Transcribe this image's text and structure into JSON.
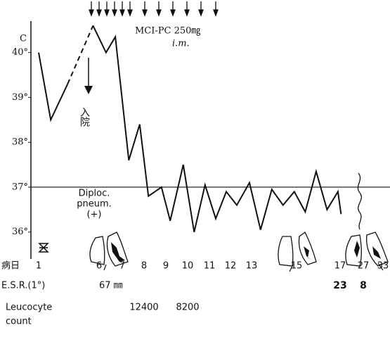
{
  "chart_data": {
    "type": "line",
    "y_unit": "C",
    "ylim": [
      35.4,
      40.7
    ],
    "yticks": [
      {
        "value": 40,
        "label": "40°"
      },
      {
        "value": 39,
        "label": "39°"
      },
      {
        "value": 38,
        "label": "38°"
      },
      {
        "value": 37,
        "label": "37°"
      },
      {
        "value": 36,
        "label": "36°"
      }
    ],
    "reference_line": 37,
    "x_label": "病日",
    "xticks": [
      1,
      6,
      7,
      8,
      9,
      10,
      11,
      12,
      13,
      15,
      17,
      27,
      33
    ],
    "color": "#111111",
    "series": [
      {
        "x": [
          1,
          2,
          3.4
        ],
        "values": [
          40.0,
          38.5,
          39.3
        ],
        "dashed": false
      },
      {
        "x": [
          3.4,
          5.5
        ],
        "values": [
          39.3,
          40.6
        ],
        "dashed": true
      },
      {
        "x": [
          5.5,
          6.3,
          6.7,
          7.3,
          7.8,
          8.2,
          8.8,
          9.2,
          9.8,
          10.3,
          10.8,
          11.3,
          11.8,
          12.3,
          12.9,
          13.4,
          13.9,
          14.4,
          14.9,
          15.4,
          15.9,
          16.4,
          16.9,
          17.4
        ],
        "values": [
          40.6,
          40.0,
          40.35,
          37.6,
          38.4,
          36.8,
          37.0,
          36.25,
          37.5,
          36.0,
          37.05,
          36.3,
          36.9,
          36.6,
          37.1,
          36.05,
          36.95,
          36.6,
          36.9,
          36.45,
          37.35,
          36.5,
          36.9,
          36.4
        ],
        "dashed": false
      }
    ],
    "annotations": {
      "drug": "MCI-PC 250㎎",
      "route": "i.m.",
      "admission": "入院",
      "diploc_1": "Diploc.",
      "diploc_2": "pneum.",
      "diploc_3": "(+)"
    },
    "esr": {
      "label": "E.S.R.(1°)",
      "days": [
        6,
        17,
        27
      ],
      "values": [
        67,
        23,
        8
      ],
      "value_labels": [
        "67 ㎜",
        "23",
        "8"
      ]
    },
    "leucocyte": {
      "label_1": "Leucocyte",
      "label_2": "count",
      "days": [
        8,
        10
      ],
      "values": [
        12400,
        8200
      ]
    }
  }
}
